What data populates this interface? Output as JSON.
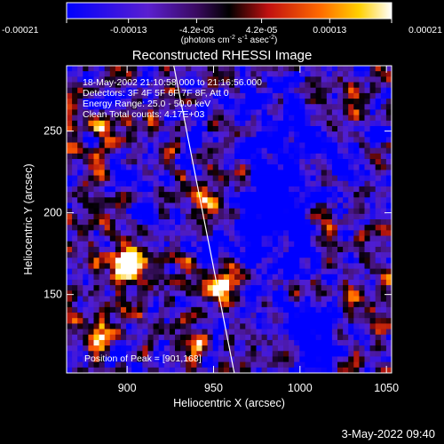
{
  "colorbar": {
    "ticks": [
      "-0.00021",
      "-0.00013",
      "-4.2e-05",
      "4.2e-05",
      "0.00013",
      "0.00021"
    ],
    "tick_values": [
      -0.00021,
      -0.00013,
      -4.2e-05,
      4.2e-05,
      0.00013,
      0.00021
    ],
    "range": [
      -0.00021,
      0.00021
    ],
    "units_parts": [
      "(photons cm",
      "-2",
      " s",
      "-1",
      " asec",
      "-2",
      ")"
    ]
  },
  "title": "Reconstructed RHESSI Image",
  "info_lines": [
    "18-May-2002 21:10:58.000 to 21:16:56.000",
    "Detectors: 3F 4F 5F 6F 7F 8F, Att 0",
    "Energy Range: 25.0 - 50.0 keV",
    "Clean   Total counts: 4.17E+03"
  ],
  "peak_label": "Position of Peak = [901,168]",
  "timestamp": "3-May-2022 09:40",
  "colors": {
    "line": "#ffffff",
    "background": "#000000"
  },
  "chart_data": {
    "type": "heatmap",
    "title": "Reconstructed RHESSI Image",
    "xlabel": "Heliocentric X (arcsec)",
    "ylabel": "Heliocentric Y (arcsec)",
    "xlim": [
      865,
      1053
    ],
    "ylim": [
      102,
      290
    ],
    "x_ticks": [
      900,
      950,
      1000,
      1050
    ],
    "y_ticks": [
      150,
      200,
      250
    ],
    "colormap": "rhessi (blue-purple-black-red-orange-yellow-white)",
    "value_range": [
      -0.00021,
      0.00021
    ],
    "peak": [
      901,
      168
    ],
    "limb_line": [
      [
        927,
        290
      ],
      [
        962,
        102
      ]
    ]
  }
}
